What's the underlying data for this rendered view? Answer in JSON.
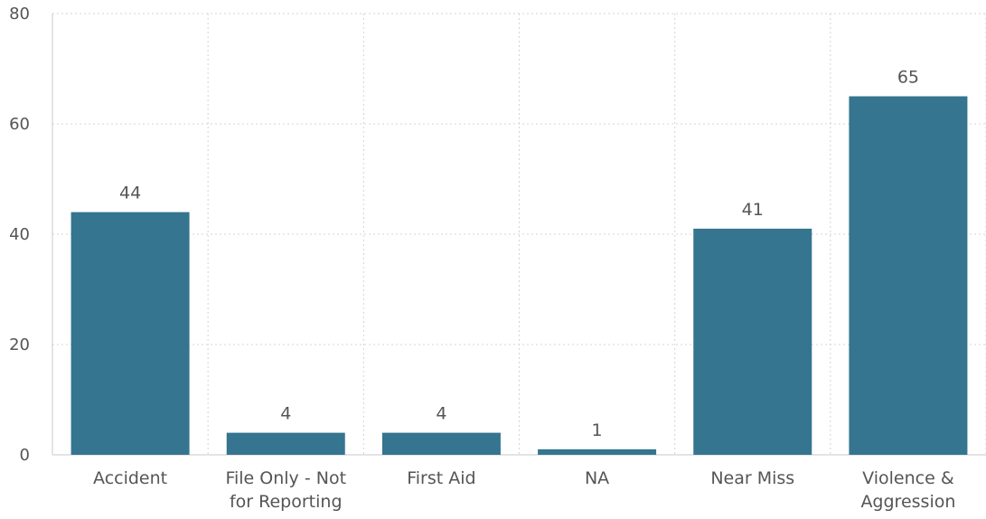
{
  "chart_data": {
    "type": "bar",
    "title": "",
    "xlabel": "",
    "ylabel": "",
    "ylim": [
      0,
      80
    ],
    "yticks": [
      0,
      20,
      40,
      60,
      80
    ],
    "grid": true,
    "categories": [
      [
        "Accident"
      ],
      [
        "File Only - Not",
        "for Reporting"
      ],
      [
        "First Aid"
      ],
      [
        "NA"
      ],
      [
        "Near Miss"
      ],
      [
        "Violence &",
        "Aggression"
      ]
    ],
    "values": [
      44,
      4,
      4,
      1,
      41,
      65
    ],
    "bar_color": "#35758f",
    "show_data_labels": true
  }
}
